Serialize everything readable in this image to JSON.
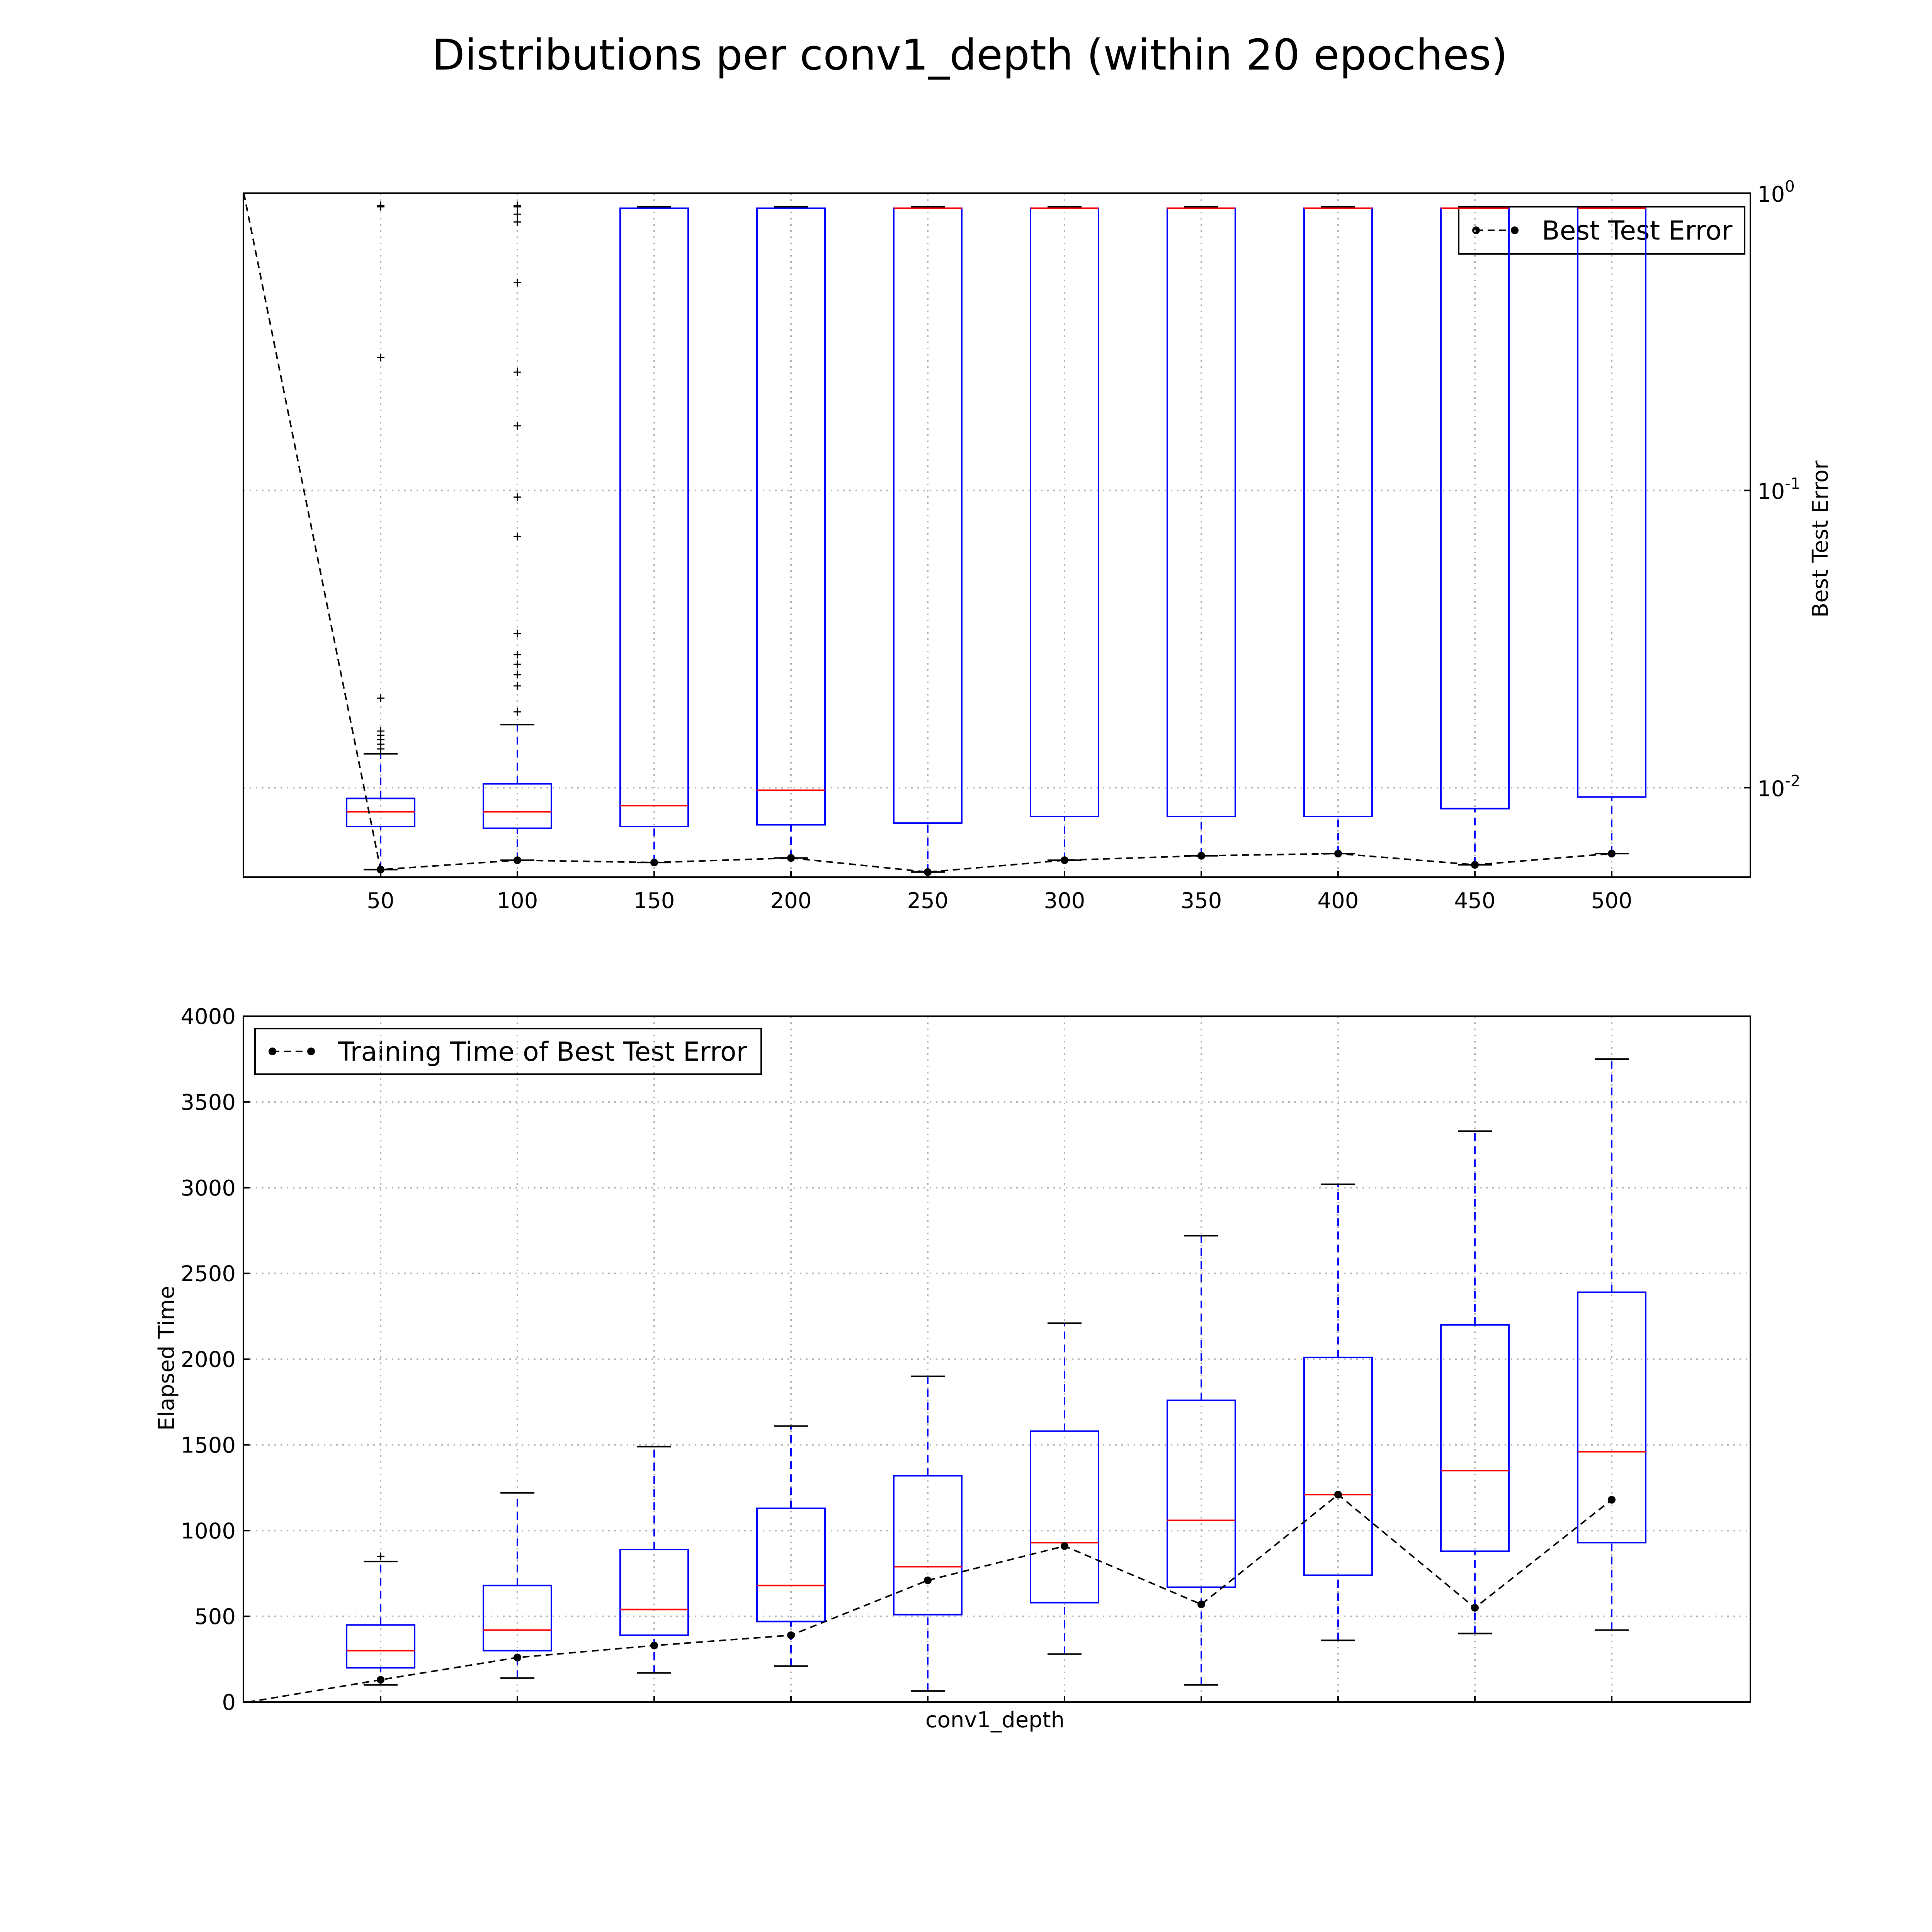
{
  "figure": {
    "title": "Distributions per conv1_depth (within 20 epoches)"
  },
  "chart_data": [
    {
      "type": "box",
      "xlabel": "",
      "ylabel": "Best Test Error",
      "yscale": "log",
      "ylim": [
        0.005,
        1
      ],
      "yticks": [
        {
          "base": "10",
          "exp": "-2"
        },
        {
          "base": "10",
          "exp": "-1"
        },
        {
          "base": "10",
          "exp": "0"
        }
      ],
      "ytick_values": [
        0.01,
        0.1,
        1
      ],
      "ytick_side": "right",
      "grid": true,
      "categories": [
        "50",
        "100",
        "150",
        "200",
        "250",
        "300",
        "350",
        "400",
        "450",
        "500"
      ],
      "boxes": [
        {
          "whislo": 0.0053,
          "q1": 0.0074,
          "med": 0.0083,
          "q3": 0.0092,
          "whishi": 0.013,
          "fliers": [
            0.0135,
            0.014,
            0.0145,
            0.015,
            0.0155,
            0.02,
            0.28,
            0.9,
            0.91
          ]
        },
        {
          "whislo": 0.0057,
          "q1": 0.0073,
          "med": 0.0083,
          "q3": 0.0103,
          "whishi": 0.0163,
          "fliers": [
            0.018,
            0.022,
            0.024,
            0.026,
            0.028,
            0.033,
            0.07,
            0.095,
            0.165,
            0.25,
            0.5,
            0.8,
            0.85,
            0.9,
            0.91
          ]
        },
        {
          "whislo": 0.0056,
          "q1": 0.0074,
          "med": 0.0087,
          "q3": 0.89,
          "whishi": 0.9,
          "fliers": []
        },
        {
          "whislo": 0.0058,
          "q1": 0.0075,
          "med": 0.0098,
          "q3": 0.89,
          "whishi": 0.9,
          "fliers": []
        },
        {
          "whislo": 0.0052,
          "q1": 0.0076,
          "med": 0.89,
          "q3": 0.89,
          "whishi": 0.9,
          "fliers": []
        },
        {
          "whislo": 0.0057,
          "q1": 0.008,
          "med": 0.89,
          "q3": 0.89,
          "whishi": 0.9,
          "fliers": []
        },
        {
          "whislo": 0.0059,
          "q1": 0.008,
          "med": 0.89,
          "q3": 0.89,
          "whishi": 0.9,
          "fliers": []
        },
        {
          "whislo": 0.006,
          "q1": 0.008,
          "med": 0.89,
          "q3": 0.89,
          "whishi": 0.9,
          "fliers": []
        },
        {
          "whislo": 0.0055,
          "q1": 0.0085,
          "med": 0.89,
          "q3": 0.89,
          "whishi": 0.9,
          "fliers": []
        },
        {
          "whislo": 0.006,
          "q1": 0.0093,
          "med": 0.89,
          "q3": 0.89,
          "whishi": 0.9,
          "fliers": []
        }
      ],
      "best_line": {
        "name": "Best Test Error",
        "leading_point": {
          "x": "0",
          "y": 1.0
        },
        "values": [
          0.0053,
          0.0057,
          0.0056,
          0.0058,
          0.0052,
          0.0057,
          0.0059,
          0.006,
          0.0055,
          0.006
        ]
      },
      "legend": {
        "position": "top-right",
        "label": "Best Test Error"
      }
    },
    {
      "type": "box",
      "xlabel": "conv1_depth",
      "ylabel": "Elapsed Time",
      "yscale": "linear",
      "ylim": [
        0,
        4000
      ],
      "yticks": [
        "0",
        "500",
        "1000",
        "1500",
        "2000",
        "2500",
        "3000",
        "3500",
        "4000"
      ],
      "ytick_values": [
        0,
        500,
        1000,
        1500,
        2000,
        2500,
        3000,
        3500,
        4000
      ],
      "grid": true,
      "categories": [
        "50",
        "100",
        "150",
        "200",
        "250",
        "300",
        "350",
        "400",
        "450",
        "500"
      ],
      "show_xticklabels": false,
      "boxes": [
        {
          "whislo": 100,
          "q1": 200,
          "med": 300,
          "q3": 450,
          "whishi": 820,
          "fliers": [
            850
          ]
        },
        {
          "whislo": 140,
          "q1": 300,
          "med": 420,
          "q3": 680,
          "whishi": 1220,
          "fliers": []
        },
        {
          "whislo": 170,
          "q1": 390,
          "med": 540,
          "q3": 890,
          "whishi": 1490,
          "fliers": []
        },
        {
          "whislo": 210,
          "q1": 470,
          "med": 680,
          "q3": 1130,
          "whishi": 1610,
          "fliers": []
        },
        {
          "whislo": 65,
          "q1": 510,
          "med": 790,
          "q3": 1320,
          "whishi": 1900,
          "fliers": []
        },
        {
          "whislo": 280,
          "q1": 580,
          "med": 930,
          "q3": 1580,
          "whishi": 2210,
          "fliers": []
        },
        {
          "whislo": 100,
          "q1": 670,
          "med": 1060,
          "q3": 1760,
          "whishi": 2720,
          "fliers": []
        },
        {
          "whislo": 360,
          "q1": 740,
          "med": 1210,
          "q3": 2010,
          "whishi": 3020,
          "fliers": []
        },
        {
          "whislo": 400,
          "q1": 880,
          "med": 1350,
          "q3": 2200,
          "whishi": 3330,
          "fliers": []
        },
        {
          "whislo": 420,
          "q1": 930,
          "med": 1460,
          "q3": 2390,
          "whishi": 3750,
          "fliers": []
        }
      ],
      "best_line": {
        "name": "Training Time of Best Test Error",
        "leading_point": {
          "x": "0",
          "y": 0
        },
        "values": [
          130,
          260,
          330,
          390,
          710,
          910,
          570,
          1210,
          550,
          1180
        ]
      },
      "legend": {
        "position": "top-left",
        "label": "Training Time of Best Test Error"
      }
    }
  ]
}
